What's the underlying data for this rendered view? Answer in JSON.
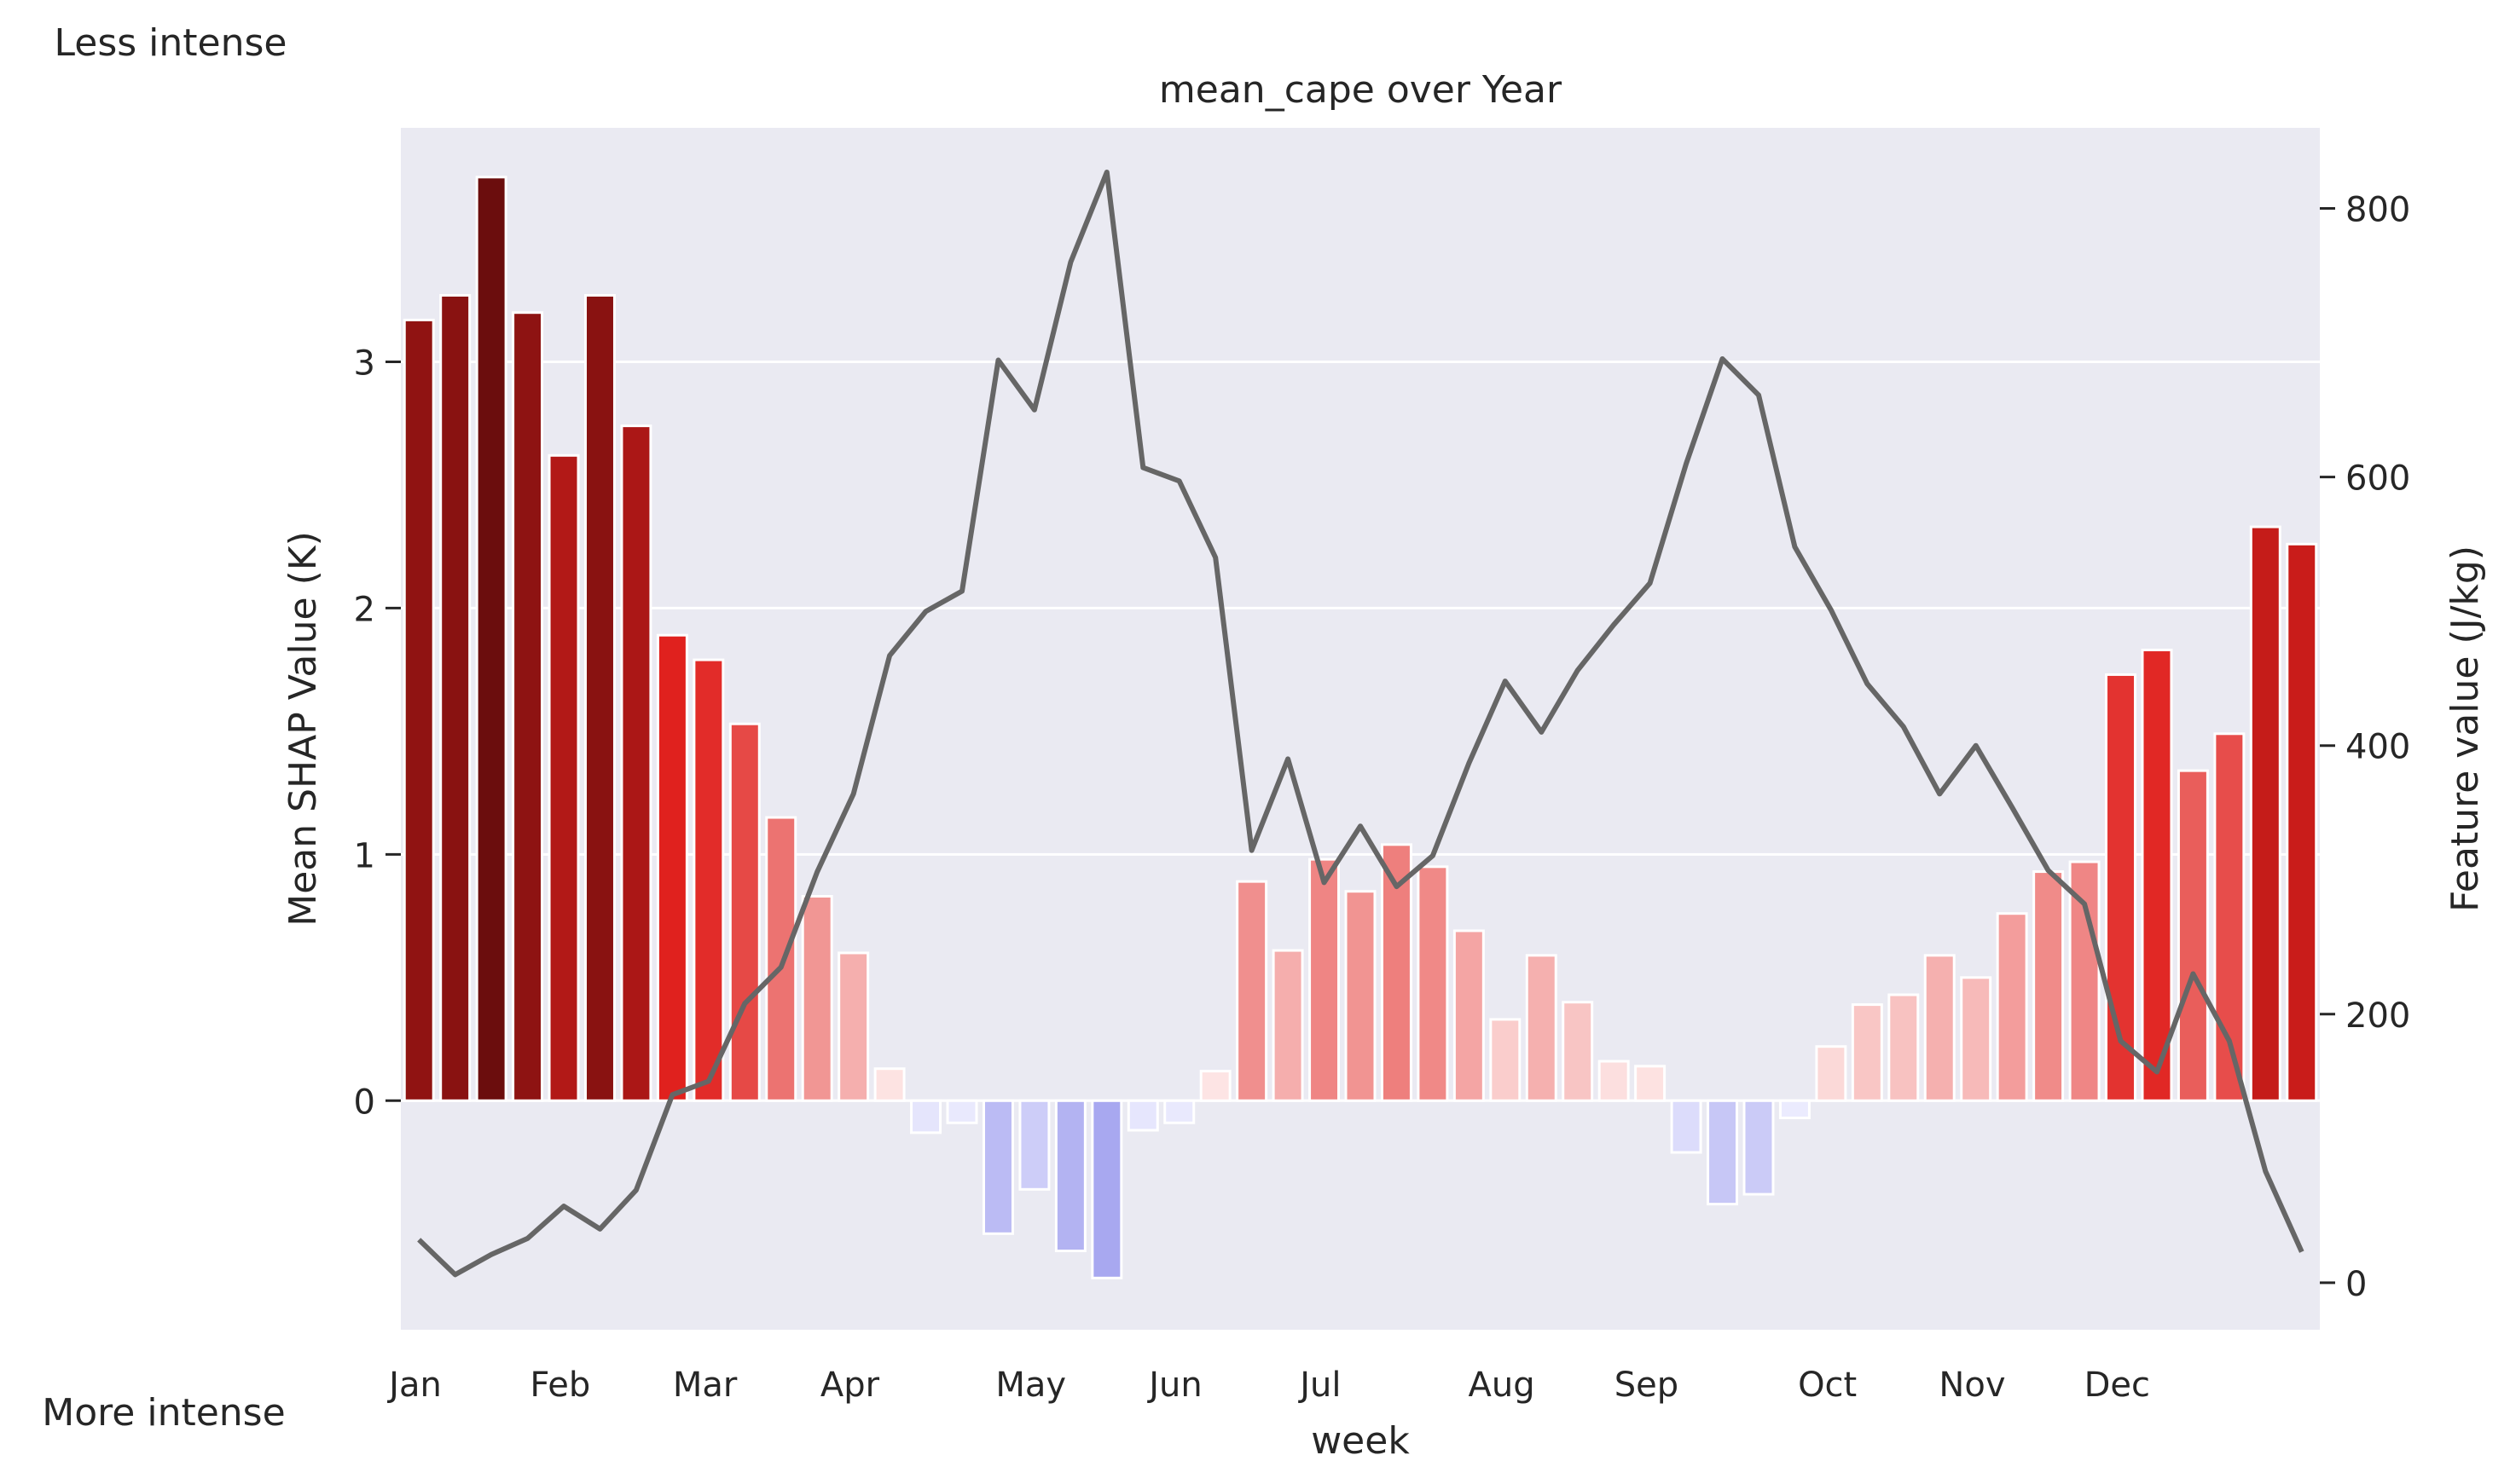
{
  "annotations": {
    "top_left": "Less intense",
    "bottom_left": "More intense"
  },
  "chart_data": {
    "type": "bar",
    "title": "mean_cape over Year",
    "xlabel": "week",
    "ylabel": "Mean SHAP Value (K)",
    "y2label": "Feature value (J/kg)",
    "ylim": [
      -0.93,
      3.95
    ],
    "y2lim": [
      -35,
      860
    ],
    "yticks": [
      0,
      1,
      2,
      3
    ],
    "y2ticks": [
      0,
      200,
      400,
      600,
      800
    ],
    "xticks": [
      {
        "label": "Jan",
        "week": 1
      },
      {
        "label": "Feb",
        "week": 5
      },
      {
        "label": "Mar",
        "week": 9
      },
      {
        "label": "Apr",
        "week": 13
      },
      {
        "label": "May",
        "week": 18
      },
      {
        "label": "Jun",
        "week": 22
      },
      {
        "label": "Jul",
        "week": 26
      },
      {
        "label": "Aug",
        "week": 31
      },
      {
        "label": "Sep",
        "week": 35
      },
      {
        "label": "Oct",
        "week": 40
      },
      {
        "label": "Nov",
        "week": 44
      },
      {
        "label": "Dec",
        "week": 48
      }
    ],
    "grid": true,
    "weeks": [
      1,
      2,
      3,
      4,
      5,
      6,
      7,
      8,
      9,
      10,
      11,
      12,
      13,
      14,
      15,
      16,
      17,
      18,
      19,
      20,
      21,
      22,
      23,
      24,
      25,
      26,
      27,
      28,
      29,
      30,
      31,
      32,
      33,
      34,
      35,
      36,
      37,
      38,
      39,
      40,
      41,
      42,
      43,
      44,
      45,
      46,
      47,
      48,
      49,
      50,
      51,
      52,
      53
    ],
    "series": [
      {
        "kind": "bar",
        "values": [
          3.17,
          3.27,
          3.75,
          3.2,
          2.62,
          3.27,
          2.74,
          1.89,
          1.79,
          1.53,
          1.15,
          0.83,
          0.6,
          0.13,
          -0.13,
          -0.09,
          -0.54,
          -0.36,
          -0.61,
          -0.72,
          -0.12,
          -0.09,
          0.12,
          0.89,
          0.61,
          0.98,
          0.85,
          1.04,
          0.95,
          0.69,
          0.33,
          0.59,
          0.4,
          0.16,
          0.14,
          -0.21,
          -0.42,
          -0.38,
          -0.07,
          0.22,
          0.39,
          0.43,
          0.59,
          0.5,
          0.76,
          0.93,
          0.97,
          1.73,
          1.83,
          1.34,
          1.49,
          2.33,
          2.26
        ]
      },
      {
        "kind": "line",
        "axis": "right",
        "color": "#666666",
        "values": [
          32,
          6,
          21,
          33,
          57,
          40,
          69,
          140,
          150,
          208,
          235,
          306,
          364,
          467,
          500,
          515,
          687,
          650,
          760,
          827,
          607,
          597,
          540,
          322,
          390,
          298,
          340,
          295,
          318,
          387,
          448,
          410,
          456,
          490,
          521,
          610,
          688,
          661,
          548,
          501,
          446,
          414,
          364,
          400,
          354,
          307,
          282,
          180,
          157,
          230,
          180,
          83,
          23
        ]
      }
    ],
    "colors": {
      "positive_max": "#6b0d0d",
      "positive_mid": "#e0201d",
      "negative": "#a8a8f0",
      "background": "#eaeaf2",
      "grid": "#ffffff"
    }
  }
}
